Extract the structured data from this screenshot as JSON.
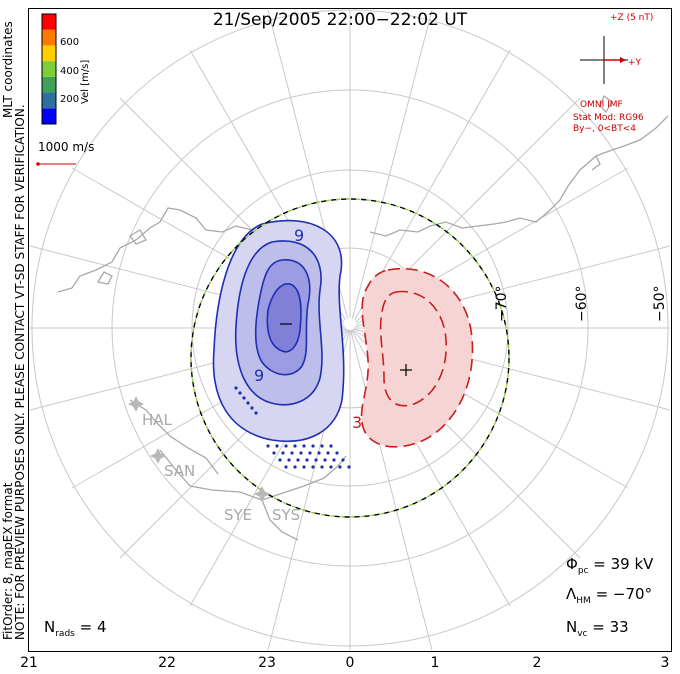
{
  "title": "21/Sep/2005 22:00−22:02 UT",
  "side_note_1": "NOTE: FOR PREVIEW PURPOSES ONLY. PLEASE CONTACT VT-SD STAFF FOR VERIFICATION.",
  "side_note_2": "FitOrder: 8, mapEX format",
  "coord_label": "MLT coordinates",
  "legend": {
    "axis_label": "Vel [m/s]",
    "ticks": [
      "600",
      "400",
      "200"
    ],
    "colors": [
      "#0000ff",
      "#2f6fa0",
      "#3fa05a",
      "#7ccd3a",
      "#ffd000",
      "#ff7a00",
      "#ff0000"
    ]
  },
  "scale_vector": "1000 m/s",
  "imf": {
    "z_label": "+Z (5 nT)",
    "y_label": "+Y",
    "source": "OMNI IMF",
    "model": "Stat Mod: RG96",
    "condition": "By−, 0<BT<4"
  },
  "lat_labels": [
    "−70°",
    "−60°",
    "−50°"
  ],
  "mlt_ticks": [
    "21",
    "22",
    "23",
    "0",
    "1",
    "2",
    "3"
  ],
  "radars": [
    "HAL",
    "SAN",
    "SYE",
    "SYS"
  ],
  "contour_labels": {
    "neg": "−",
    "pos": "+",
    "neg9": "9",
    "neg9b": "9",
    "pos3": "3"
  },
  "stats": {
    "phi_symbol": "Φ",
    "phi_sub": "pc",
    "phi_value": "= 39 kV",
    "lambda_symbol": "Λ",
    "lambda_sub": "HM",
    "lambda_value": "= −70°",
    "nvc_symbol": "N",
    "nvc_sub": "vc",
    "nvc_value": "= 33",
    "nrads_symbol": "N",
    "nrads_sub": "rads",
    "nrads_value": "= 4"
  },
  "colors": {
    "negative_fill": "#c8c8f0",
    "negative_line": "#1e2fb4",
    "positive_fill": "#f6d0d0",
    "positive_line": "#c81e1e",
    "boundary_green": "#8fd13a",
    "coast": "#a8a8a8"
  }
}
